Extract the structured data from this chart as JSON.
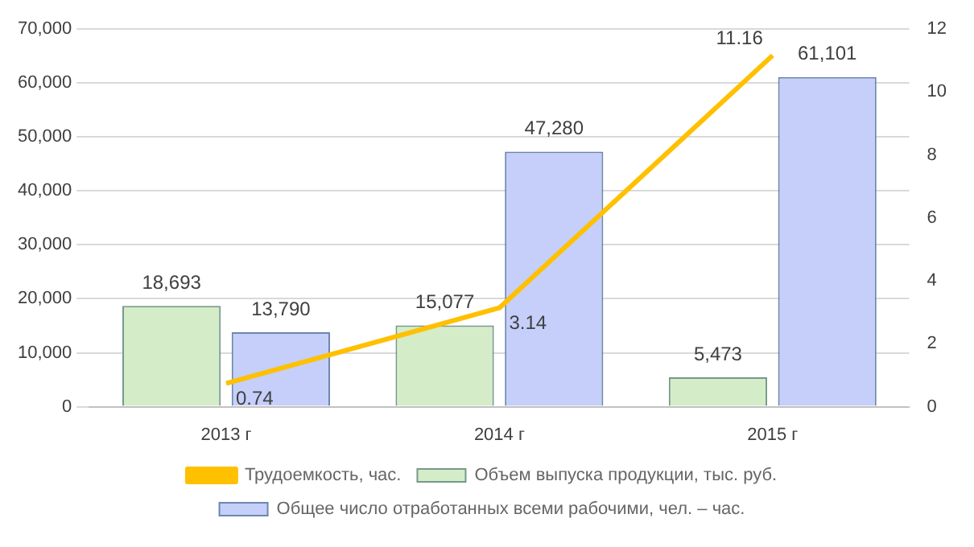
{
  "chart_data": {
    "type": "bar",
    "categories": [
      "2013 г",
      "2014 г",
      "2015 г"
    ],
    "series": [
      {
        "name": "Объем выпуска продукции, тыс. руб.",
        "color": "#d5ecc8",
        "values": [
          18693,
          15077,
          5473
        ],
        "value_labels": [
          "18,693",
          "15,077",
          "5,473"
        ]
      },
      {
        "name": "Общее число отработанных всеми рабочими, чел. – час.",
        "color": "#c5cffa",
        "values": [
          13790,
          47280,
          61101
        ],
        "value_labels": [
          "13,790",
          "47,280",
          "61,101"
        ]
      },
      {
        "name": "Трудоемкость, час.",
        "type": "line",
        "axis": "y2",
        "color": "#ffc000",
        "values": [
          0.74,
          3.14,
          11.16
        ]
      }
    ],
    "ylim": [
      0,
      70000
    ],
    "yticks": [
      0,
      {
        "value": 10000,
        "label": "10,000"
      },
      {
        "value": 20000,
        "label": "20,000"
      },
      {
        "value": 30000,
        "label": "30,000"
      },
      {
        "value": 40000,
        "label": "40,000"
      },
      {
        "value": 50000,
        "label": "50,000"
      },
      {
        "value": 60000,
        "label": "60,000"
      },
      {
        "value": 70000,
        "label": "70,000"
      }
    ],
    "y2lim": [
      0,
      12
    ],
    "y2ticks": [
      0,
      2,
      4,
      6,
      8,
      10,
      12
    ],
    "grid": "y",
    "legend": "bottom",
    "data_labels": true,
    "marker": "none"
  }
}
